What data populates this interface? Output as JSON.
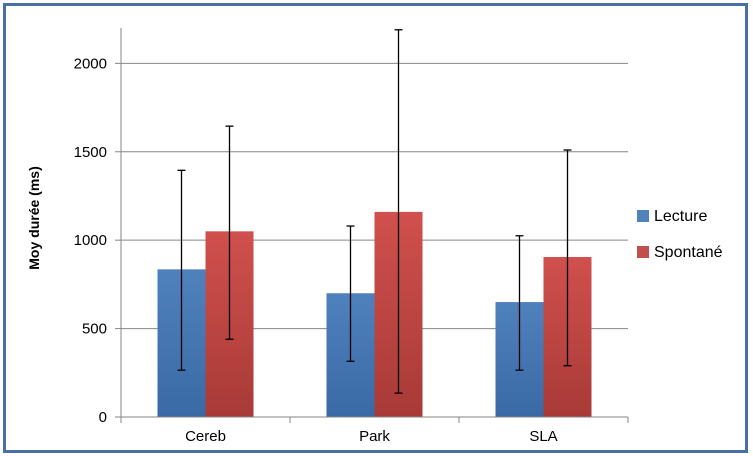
{
  "chart_data": {
    "type": "bar",
    "title": "",
    "xlabel": "",
    "ylabel": "Moy durée (ms)",
    "ylim": [
      0,
      2200
    ],
    "yticks": [
      0,
      500,
      1000,
      1500,
      2000
    ],
    "grid": true,
    "legend_position": "right",
    "categories": [
      "Cereb",
      "Park",
      "SLA"
    ],
    "series": [
      {
        "name": "Lecture",
        "color": "#4f81bd",
        "values": [
          835,
          700,
          650
        ],
        "error_low": [
          265,
          315,
          265
        ],
        "error_high": [
          1395,
          1080,
          1025
        ]
      },
      {
        "name": "Spontané",
        "color": "#c0504d",
        "values": [
          1050,
          1160,
          905
        ],
        "error_low": [
          440,
          135,
          290
        ],
        "error_high": [
          1645,
          2190,
          1510
        ]
      }
    ]
  }
}
